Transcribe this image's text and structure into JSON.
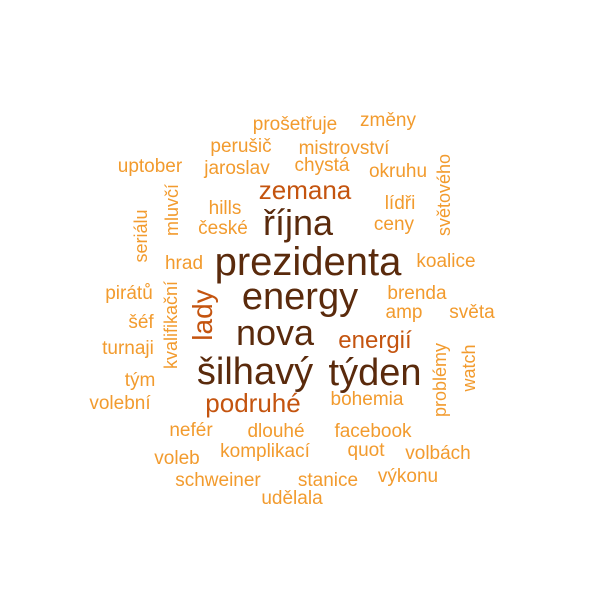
{
  "colors": {
    "dark": "#5a2a0c",
    "mid": "#c4540f",
    "light": "#f29b2e"
  },
  "words": [
    {
      "text": "prezidenta",
      "color": "dark"
    },
    {
      "text": "energy",
      "color": "dark"
    },
    {
      "text": "nova",
      "color": "dark"
    },
    {
      "text": "šilhavý",
      "color": "dark"
    },
    {
      "text": "týden",
      "color": "dark"
    },
    {
      "text": "října",
      "color": "dark"
    },
    {
      "text": "zemana",
      "color": "mid"
    },
    {
      "text": "energií",
      "color": "mid"
    },
    {
      "text": "podruhé",
      "color": "mid"
    },
    {
      "text": "lady",
      "color": "mid"
    },
    {
      "text": "prošetřuje",
      "color": "light"
    },
    {
      "text": "změny",
      "color": "light"
    },
    {
      "text": "perušič",
      "color": "light"
    },
    {
      "text": "mistrovství",
      "color": "light"
    },
    {
      "text": "uptober",
      "color": "light"
    },
    {
      "text": "jaroslav",
      "color": "light"
    },
    {
      "text": "chystá",
      "color": "light"
    },
    {
      "text": "okruhu",
      "color": "light"
    },
    {
      "text": "světového",
      "color": "light"
    },
    {
      "text": "mluvčí",
      "color": "light"
    },
    {
      "text": "hills",
      "color": "light"
    },
    {
      "text": "lídři",
      "color": "light"
    },
    {
      "text": "seriálu",
      "color": "light"
    },
    {
      "text": "české",
      "color": "light"
    },
    {
      "text": "ceny",
      "color": "light"
    },
    {
      "text": "hrad",
      "color": "light"
    },
    {
      "text": "koalice",
      "color": "light"
    },
    {
      "text": "pirátů",
      "color": "light"
    },
    {
      "text": "brenda",
      "color": "light"
    },
    {
      "text": "amp",
      "color": "light"
    },
    {
      "text": "světa",
      "color": "light"
    },
    {
      "text": "šéf",
      "color": "light"
    },
    {
      "text": "turnaji",
      "color": "light"
    },
    {
      "text": "kvalifikační",
      "color": "light"
    },
    {
      "text": "problémy",
      "color": "light"
    },
    {
      "text": "watch",
      "color": "light"
    },
    {
      "text": "tým",
      "color": "light"
    },
    {
      "text": "volební",
      "color": "light"
    },
    {
      "text": "bohemia",
      "color": "light"
    },
    {
      "text": "nefér",
      "color": "light"
    },
    {
      "text": "dlouhé",
      "color": "light"
    },
    {
      "text": "facebook",
      "color": "light"
    },
    {
      "text": "komplikací",
      "color": "light"
    },
    {
      "text": "quot",
      "color": "light"
    },
    {
      "text": "volbách",
      "color": "light"
    },
    {
      "text": "voleb",
      "color": "light"
    },
    {
      "text": "schweiner",
      "color": "light"
    },
    {
      "text": "stanice",
      "color": "light"
    },
    {
      "text": "výkonu",
      "color": "light"
    },
    {
      "text": "udělala",
      "color": "light"
    }
  ]
}
